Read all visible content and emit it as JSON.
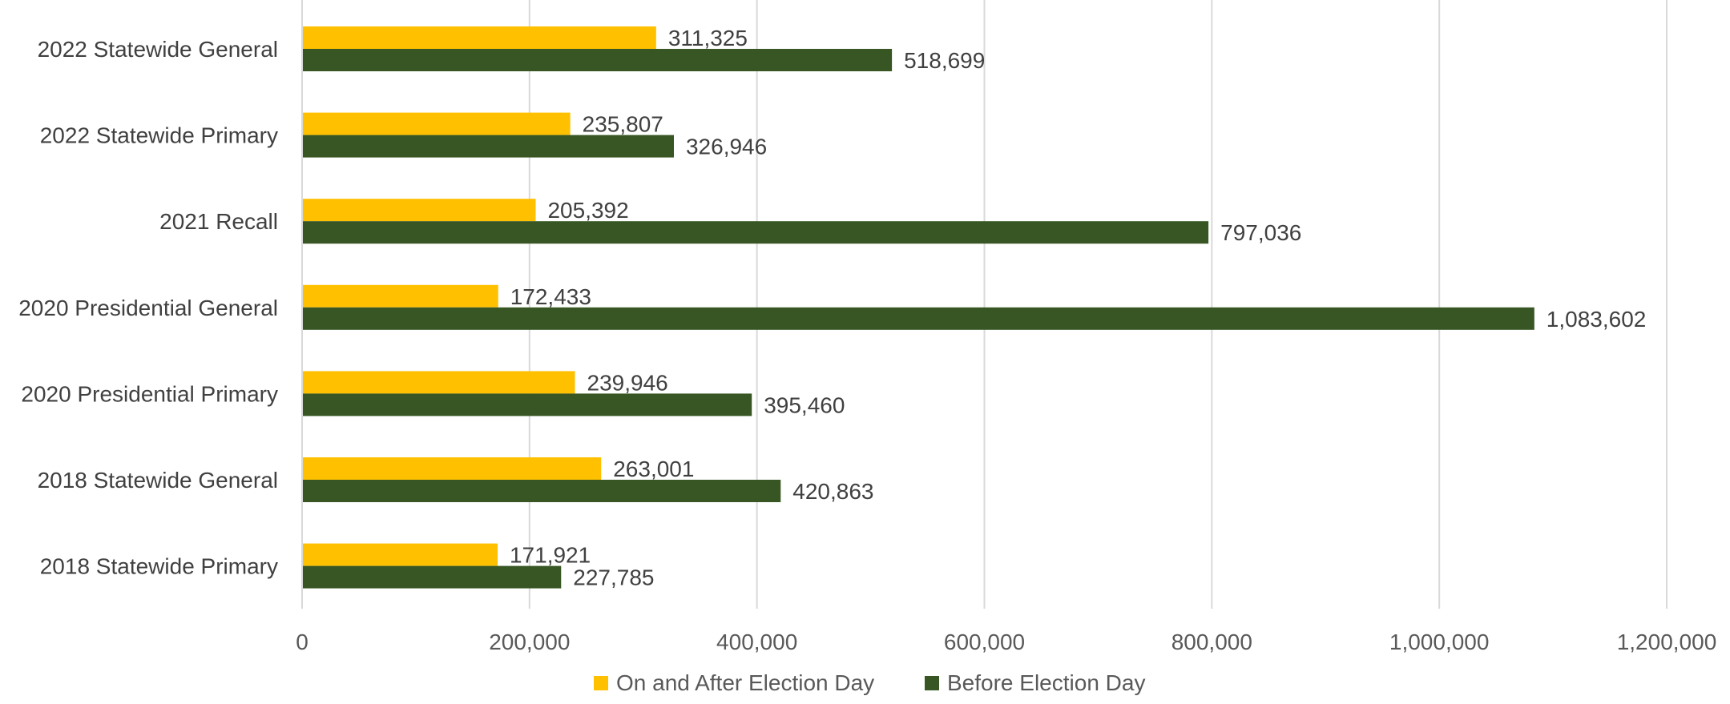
{
  "chart_data": {
    "type": "bar",
    "orientation": "horizontal",
    "categories": [
      "2022 Statewide General",
      "2022 Statewide Primary",
      "2021 Recall",
      "2020 Presidential General",
      "2020 Presidential Primary",
      "2018 Statewide General",
      "2018 Statewide Primary"
    ],
    "series": [
      {
        "name": "On and After Election Day",
        "color": "#FFC000",
        "values": [
          311325,
          235807,
          205392,
          172433,
          239946,
          263001,
          171921
        ],
        "labels": [
          "311,325",
          "235,807",
          "205,392",
          "172,433",
          "239,946",
          "263,001",
          "171,921"
        ]
      },
      {
        "name": "Before Election Day",
        "color": "#375623",
        "values": [
          518699,
          326946,
          797036,
          1083602,
          395460,
          420863,
          227785
        ],
        "labels": [
          "518,699",
          "326,946",
          "797,036",
          "1,083,602",
          "395,460",
          "420,863",
          "227,785"
        ]
      }
    ],
    "xlim": [
      0,
      1200000
    ],
    "x_ticks": [
      0,
      200000,
      400000,
      600000,
      800000,
      1000000,
      1200000
    ],
    "x_tick_labels": [
      "0",
      "200,000",
      "400,000",
      "600,000",
      "800,000",
      "1,000,000",
      "1,200,000"
    ],
    "grid": true,
    "legend": "bottom",
    "title": "",
    "xlabel": "",
    "ylabel": ""
  }
}
